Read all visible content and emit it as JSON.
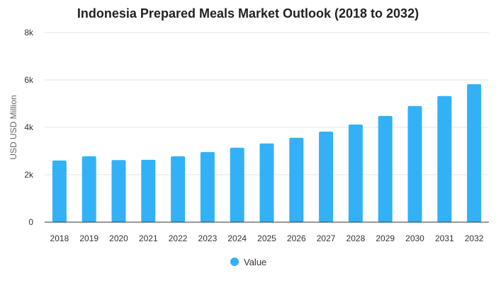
{
  "chart_data": {
    "type": "bar",
    "title": "Indonesia Prepared Meals Market Outlook (2018 to 2032)",
    "xlabel": "",
    "ylabel": "USD USD Million",
    "ylim": [
      0,
      8000
    ],
    "yticks": [
      {
        "value": 0,
        "label": "0"
      },
      {
        "value": 2000,
        "label": "2k"
      },
      {
        "value": 4000,
        "label": "4k"
      },
      {
        "value": 6000,
        "label": "6k"
      },
      {
        "value": 8000,
        "label": "8k"
      }
    ],
    "grid": true,
    "legend_position": "bottom",
    "categories": [
      "2018",
      "2019",
      "2020",
      "2021",
      "2022",
      "2023",
      "2024",
      "2025",
      "2026",
      "2027",
      "2028",
      "2029",
      "2030",
      "2031",
      "2032"
    ],
    "series": [
      {
        "name": "Value",
        "color": "#33b1f7",
        "values": [
          2600,
          2780,
          2620,
          2630,
          2780,
          2960,
          3140,
          3320,
          3560,
          3820,
          4120,
          4480,
          4900,
          5320,
          5820
        ]
      }
    ]
  }
}
